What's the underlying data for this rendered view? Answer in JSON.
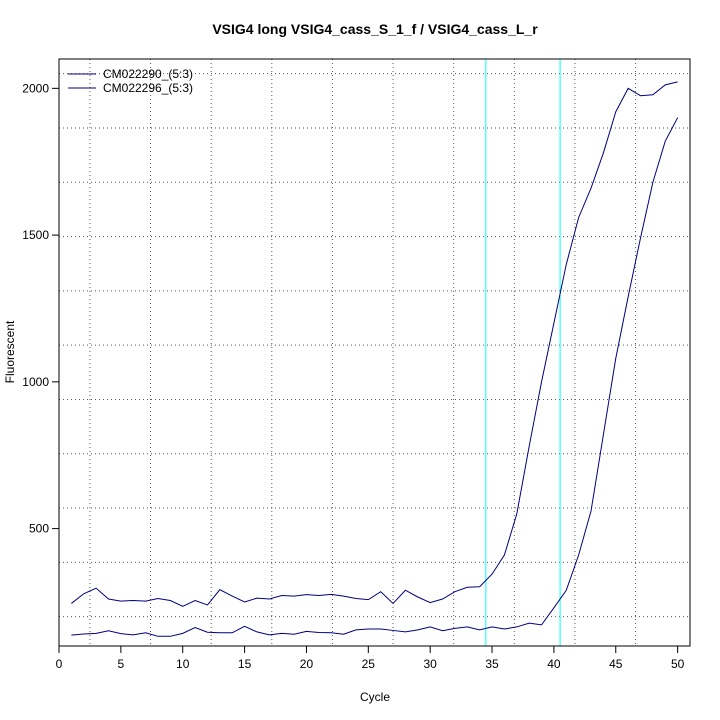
{
  "chart_data": {
    "type": "line",
    "title": "VSIG4 long VSIG4_cass_S_1_f / VSIG4_cass_L_r",
    "xlabel": "Cycle",
    "ylabel": "Fluorescent",
    "xlim": [
      0,
      51
    ],
    "ylim": [
      100,
      2100
    ],
    "x_ticks": [
      0,
      5,
      10,
      15,
      20,
      25,
      30,
      35,
      40,
      45,
      50
    ],
    "y_ticks": [
      500,
      1000,
      1500,
      2000
    ],
    "grid": true,
    "grid_style": "dotted",
    "legend_position": "top-left",
    "x": [
      1,
      2,
      3,
      4,
      5,
      6,
      7,
      8,
      9,
      10,
      11,
      12,
      13,
      14,
      15,
      16,
      17,
      18,
      19,
      20,
      21,
      22,
      23,
      24,
      25,
      26,
      27,
      28,
      29,
      30,
      31,
      32,
      33,
      34,
      35,
      36,
      37,
      38,
      39,
      40,
      41,
      42,
      43,
      44,
      45,
      46,
      47,
      48,
      49,
      50
    ],
    "series": [
      {
        "name": "CM022290_(5:3)",
        "color": "#000080",
        "values": [
          245,
          278,
          297,
          260,
          253,
          255,
          253,
          262,
          255,
          235,
          255,
          240,
          292,
          270,
          250,
          263,
          260,
          272,
          270,
          275,
          272,
          276,
          270,
          262,
          258,
          285,
          245,
          290,
          267,
          248,
          260,
          285,
          300,
          302,
          345,
          410,
          550,
          780,
          1000,
          1200,
          1400,
          1560,
          1660,
          1780,
          1920,
          2000,
          1975,
          1978,
          2012,
          2022
        ]
      },
      {
        "name": "CM022296_(5:3)",
        "color": "#000080",
        "values": [
          137,
          141,
          143,
          152,
          142,
          138,
          145,
          133,
          133,
          143,
          163,
          147,
          145,
          145,
          167,
          148,
          138,
          143,
          140,
          150,
          146,
          145,
          140,
          155,
          158,
          158,
          153,
          148,
          155,
          165,
          152,
          160,
          165,
          155,
          165,
          158,
          165,
          178,
          172,
          230,
          290,
          410,
          560,
          820,
          1080,
          1290,
          1490,
          1680,
          1820,
          1900
        ]
      }
    ],
    "reference_lines_x": [
      34.5,
      40.5
    ],
    "reference_line_color": "#00ffff"
  }
}
